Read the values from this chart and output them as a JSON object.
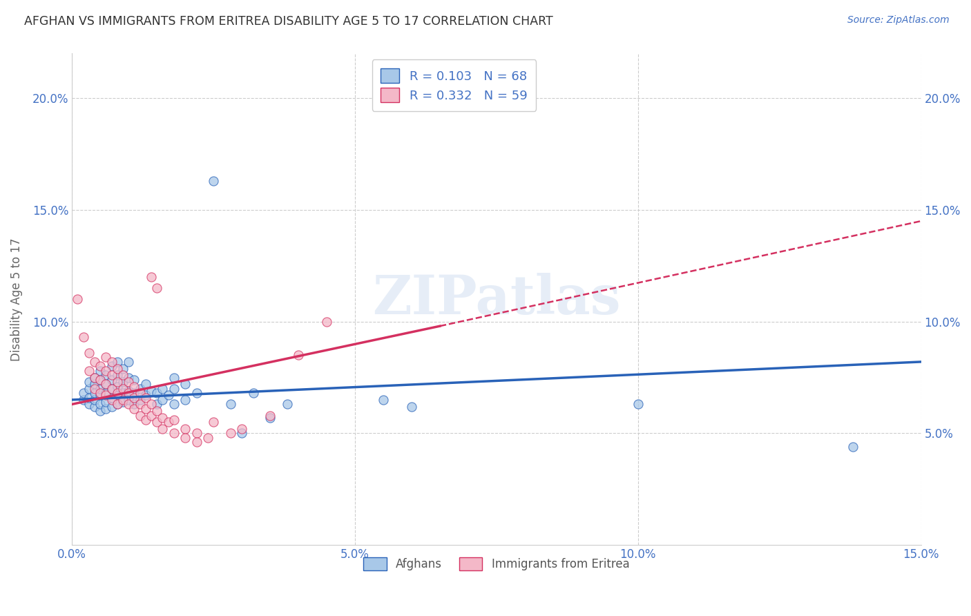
{
  "title": "AFGHAN VS IMMIGRANTS FROM ERITREA DISABILITY AGE 5 TO 17 CORRELATION CHART",
  "source": "Source: ZipAtlas.com",
  "ylabel": "Disability Age 5 to 17",
  "xlim": [
    0.0,
    0.15
  ],
  "ylim": [
    0.0,
    0.22
  ],
  "xticks": [
    0.0,
    0.05,
    0.1,
    0.15
  ],
  "yticks": [
    0.05,
    0.1,
    0.15,
    0.2
  ],
  "xticklabels": [
    "0.0%",
    "5.0%",
    "10.0%",
    "15.0%"
  ],
  "yticklabels": [
    "5.0%",
    "10.0%",
    "15.0%",
    "20.0%"
  ],
  "blue_color": "#a8c8e8",
  "pink_color": "#f4b8c8",
  "blue_line_color": "#2962b8",
  "pink_line_color": "#d43060",
  "axis_label_color": "#4472c4",
  "r_n_color": "#4472c4",
  "legend_r1": "R = 0.103   N = 68",
  "legend_r2": "R = 0.332   N = 59",
  "legend_label1": "Afghans",
  "legend_label2": "Immigrants from Eritrea",
  "watermark": "ZIPatlas",
  "background_color": "#ffffff",
  "blue_scatter": [
    [
      0.002,
      0.065
    ],
    [
      0.002,
      0.068
    ],
    [
      0.003,
      0.063
    ],
    [
      0.003,
      0.066
    ],
    [
      0.003,
      0.07
    ],
    [
      0.003,
      0.073
    ],
    [
      0.004,
      0.062
    ],
    [
      0.004,
      0.065
    ],
    [
      0.004,
      0.068
    ],
    [
      0.004,
      0.072
    ],
    [
      0.004,
      0.075
    ],
    [
      0.005,
      0.06
    ],
    [
      0.005,
      0.063
    ],
    [
      0.005,
      0.067
    ],
    [
      0.005,
      0.07
    ],
    [
      0.005,
      0.074
    ],
    [
      0.005,
      0.078
    ],
    [
      0.006,
      0.061
    ],
    [
      0.006,
      0.064
    ],
    [
      0.006,
      0.068
    ],
    [
      0.006,
      0.072
    ],
    [
      0.006,
      0.076
    ],
    [
      0.007,
      0.062
    ],
    [
      0.007,
      0.066
    ],
    [
      0.007,
      0.07
    ],
    [
      0.007,
      0.074
    ],
    [
      0.007,
      0.08
    ],
    [
      0.008,
      0.063
    ],
    [
      0.008,
      0.067
    ],
    [
      0.008,
      0.071
    ],
    [
      0.008,
      0.076
    ],
    [
      0.008,
      0.082
    ],
    [
      0.009,
      0.064
    ],
    [
      0.009,
      0.068
    ],
    [
      0.009,
      0.073
    ],
    [
      0.009,
      0.079
    ],
    [
      0.01,
      0.065
    ],
    [
      0.01,
      0.069
    ],
    [
      0.01,
      0.075
    ],
    [
      0.01,
      0.082
    ],
    [
      0.011,
      0.063
    ],
    [
      0.011,
      0.068
    ],
    [
      0.011,
      0.074
    ],
    [
      0.012,
      0.065
    ],
    [
      0.012,
      0.07
    ],
    [
      0.013,
      0.067
    ],
    [
      0.013,
      0.072
    ],
    [
      0.014,
      0.069
    ],
    [
      0.015,
      0.063
    ],
    [
      0.015,
      0.068
    ],
    [
      0.016,
      0.065
    ],
    [
      0.016,
      0.07
    ],
    [
      0.017,
      0.067
    ],
    [
      0.018,
      0.063
    ],
    [
      0.018,
      0.07
    ],
    [
      0.018,
      0.075
    ],
    [
      0.02,
      0.065
    ],
    [
      0.02,
      0.072
    ],
    [
      0.022,
      0.068
    ],
    [
      0.025,
      0.163
    ],
    [
      0.028,
      0.063
    ],
    [
      0.03,
      0.05
    ],
    [
      0.032,
      0.068
    ],
    [
      0.035,
      0.057
    ],
    [
      0.038,
      0.063
    ],
    [
      0.055,
      0.065
    ],
    [
      0.06,
      0.062
    ],
    [
      0.1,
      0.063
    ],
    [
      0.138,
      0.044
    ]
  ],
  "pink_scatter": [
    [
      0.001,
      0.11
    ],
    [
      0.002,
      0.093
    ],
    [
      0.003,
      0.086
    ],
    [
      0.003,
      0.078
    ],
    [
      0.004,
      0.082
    ],
    [
      0.004,
      0.075
    ],
    [
      0.004,
      0.07
    ],
    [
      0.005,
      0.08
    ],
    [
      0.005,
      0.074
    ],
    [
      0.005,
      0.068
    ],
    [
      0.006,
      0.084
    ],
    [
      0.006,
      0.078
    ],
    [
      0.006,
      0.072
    ],
    [
      0.006,
      0.067
    ],
    [
      0.007,
      0.082
    ],
    [
      0.007,
      0.076
    ],
    [
      0.007,
      0.07
    ],
    [
      0.007,
      0.065
    ],
    [
      0.008,
      0.079
    ],
    [
      0.008,
      0.073
    ],
    [
      0.008,
      0.068
    ],
    [
      0.008,
      0.063
    ],
    [
      0.009,
      0.076
    ],
    [
      0.009,
      0.07
    ],
    [
      0.009,
      0.065
    ],
    [
      0.01,
      0.073
    ],
    [
      0.01,
      0.068
    ],
    [
      0.01,
      0.063
    ],
    [
      0.011,
      0.071
    ],
    [
      0.011,
      0.066
    ],
    [
      0.011,
      0.061
    ],
    [
      0.012,
      0.068
    ],
    [
      0.012,
      0.063
    ],
    [
      0.012,
      0.058
    ],
    [
      0.013,
      0.066
    ],
    [
      0.013,
      0.061
    ],
    [
      0.013,
      0.056
    ],
    [
      0.014,
      0.063
    ],
    [
      0.014,
      0.058
    ],
    [
      0.014,
      0.12
    ],
    [
      0.015,
      0.06
    ],
    [
      0.015,
      0.055
    ],
    [
      0.015,
      0.115
    ],
    [
      0.016,
      0.057
    ],
    [
      0.016,
      0.052
    ],
    [
      0.017,
      0.055
    ],
    [
      0.018,
      0.05
    ],
    [
      0.018,
      0.056
    ],
    [
      0.02,
      0.052
    ],
    [
      0.02,
      0.048
    ],
    [
      0.022,
      0.05
    ],
    [
      0.022,
      0.046
    ],
    [
      0.024,
      0.048
    ],
    [
      0.025,
      0.055
    ],
    [
      0.028,
      0.05
    ],
    [
      0.03,
      0.052
    ],
    [
      0.035,
      0.058
    ],
    [
      0.04,
      0.085
    ],
    [
      0.045,
      0.1
    ]
  ],
  "blue_trend": [
    0.0,
    0.15,
    0.065,
    0.082
  ],
  "pink_trend_solid": [
    0.0,
    0.065,
    0.063,
    0.098
  ],
  "pink_trend_dash": [
    0.065,
    0.15,
    0.098,
    0.145
  ]
}
